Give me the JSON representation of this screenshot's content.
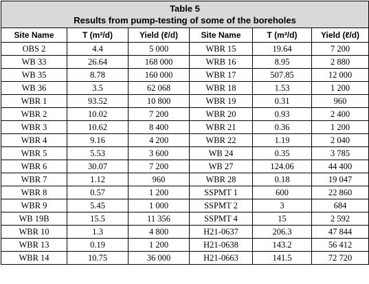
{
  "table": {
    "title": "Table 5",
    "subtitle": "Results from pump-testing of some of the boreholes",
    "headers": [
      "Site Name",
      "T (m²/d)",
      "Yield (ℓ/d)",
      "Site Name",
      "T  (m²/d)",
      "Yield (ℓ/d)"
    ],
    "rows": [
      [
        "OBS 2",
        "4.4",
        "5 000",
        "WBR 15",
        "19.64",
        "7 200"
      ],
      [
        "WB 33",
        "26.64",
        "168 000",
        "WRB 16",
        "8.95",
        "2 880"
      ],
      [
        "WB 35",
        "8.78",
        "160 000",
        "WBR 17",
        "507.85",
        "12 000"
      ],
      [
        "WB 36",
        "3.5",
        "62 068",
        "WBR 18",
        "1.53",
        "1 200"
      ],
      [
        "WBR 1",
        "93.52",
        "10 800",
        "WBR 19",
        "0.31",
        "960"
      ],
      [
        "WBR 2",
        "10.02",
        "7 200",
        "WBR 20",
        "0.93",
        "2 400"
      ],
      [
        "WBR 3",
        "10.62",
        "8 400",
        "WBR 21",
        "0.36",
        "1 200"
      ],
      [
        "WBR 4",
        "9.16",
        "4 200",
        "WBR 22",
        "1.19",
        "2 040"
      ],
      [
        "WBR 5",
        "5.53",
        "3 600",
        "WB 24",
        "0.35",
        "3 785"
      ],
      [
        "WBR 6",
        "30.07",
        "7 200",
        "WB 27",
        "124.06",
        "44 400"
      ],
      [
        "WBR 7",
        "1.12",
        "960",
        "WBR 28",
        "0.18",
        "19 047"
      ],
      [
        "WBR 8",
        "0.57",
        "1 200",
        "SSPMT 1",
        "600",
        "22 860"
      ],
      [
        "WBR 9",
        "5.45",
        "1 000",
        "SSPMT 2",
        "3",
        "684"
      ],
      [
        "WB 19B",
        "15.5",
        "11 356",
        "SSPMT 4",
        "15",
        "2 592"
      ],
      [
        "WBR 10",
        "1.3",
        "4 800",
        "H21-0637",
        "206.3",
        "47 844"
      ],
      [
        "WBR 13",
        "0.19",
        "1 200",
        "H21-0638",
        "143.2",
        "56 412"
      ],
      [
        "WBR 14",
        "10.75",
        "36 000",
        "H21-0663",
        "141.5",
        "72 720"
      ]
    ]
  }
}
